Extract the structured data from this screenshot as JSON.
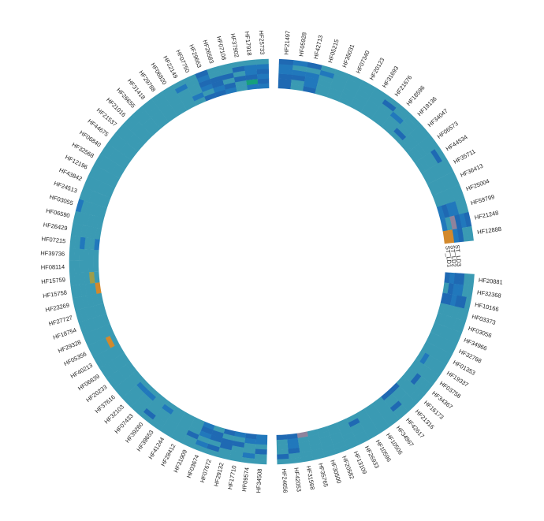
{
  "chart_data": {
    "type": "heatmap",
    "layout": "circular",
    "colors": {
      "base": "#3a9ab3",
      "blue": "#2178bc",
      "deep": "#1f69b3",
      "mauve": "#8f839c",
      "orange": "#d3892c",
      "olive": "#9c9d4a",
      "green": "#16a07c"
    },
    "tracks": 6,
    "sectors": [
      {
        "name": "top-right",
        "labels": [
          "HF21497",
          "HF05928",
          "HF42713",
          "HF05215",
          "HF35031",
          "HF07340",
          "HF20123",
          "HF31693",
          "HF21676",
          "HF18596",
          "HF19136",
          "HF34047",
          "HF06573",
          "HF44534",
          "HF35711",
          "HF36413",
          "HF25004",
          "HF59799",
          "HF21248",
          "HF12888"
        ],
        "extra_labels": [
          "ST_LD3",
          "ST_LD2",
          "ST_LD1"
        ]
      },
      {
        "name": "right-bottom",
        "labels": [
          "HF20881",
          "HF32368",
          "HF10166",
          "HF03373",
          "HF03056",
          "HF34966",
          "HF32768",
          "HF01353",
          "HF19337",
          "HF03758",
          "HF34367",
          "HF16173",
          "HF21316",
          "HF42617",
          "HF34967",
          "HF10506",
          "HF10596",
          "HF26933",
          "HF13109",
          "HF20582",
          "HF30500",
          "HF35765",
          "HF31568",
          "HF42053",
          "HF24656"
        ]
      },
      {
        "name": "left",
        "labels": [
          "HF34508",
          "HF09574",
          "HF17710",
          "HF29132",
          "HF07672",
          "HF03674",
          "HF31909",
          "HF28412",
          "HF41244",
          "HF39653",
          "HF39260",
          "HF07433",
          "HF32103",
          "HF37616",
          "HF20233",
          "HF06839",
          "HF40213",
          "HF05356",
          "HF29328",
          "HF18754",
          "HF27727",
          "HF23269",
          "HF15758",
          "HF15759",
          "HF08114",
          "HF39736",
          "HF07215",
          "HF26429",
          "HF06590",
          "HF03055",
          "HF24513",
          "HF43842",
          "HF12196",
          "HF32568",
          "HF06840",
          "HF44675",
          "HF21537",
          "HF21016",
          "HF26655",
          "HF31418",
          "HF29788",
          "HF06820",
          "HF22149",
          "HF07750",
          "HF29663",
          "HF26583",
          "HF07108",
          "HF37902",
          "HF17918",
          "HF25733"
        ]
      }
    ],
    "highlights": [
      {
        "label": "HF12888",
        "column": "ST_LD1",
        "color": "orange"
      },
      {
        "label": "HF12888",
        "column": "ST_LD2",
        "color": "orange"
      },
      {
        "label": "HF21248",
        "column": "ST_LD3",
        "color": "mauve"
      },
      {
        "label": "HF31568",
        "column": "ST_LD1",
        "color": "mauve"
      },
      {
        "label": "HF15758",
        "column": "ST_LD1",
        "color": "orange"
      },
      {
        "label": "HF15759",
        "column": "ST_LD2",
        "color": "olive"
      },
      {
        "label": "HF05356",
        "column": "ST_LD2",
        "color": "orange"
      },
      {
        "label": "HF17918",
        "column": "ST_LD2",
        "color": "green"
      }
    ]
  }
}
